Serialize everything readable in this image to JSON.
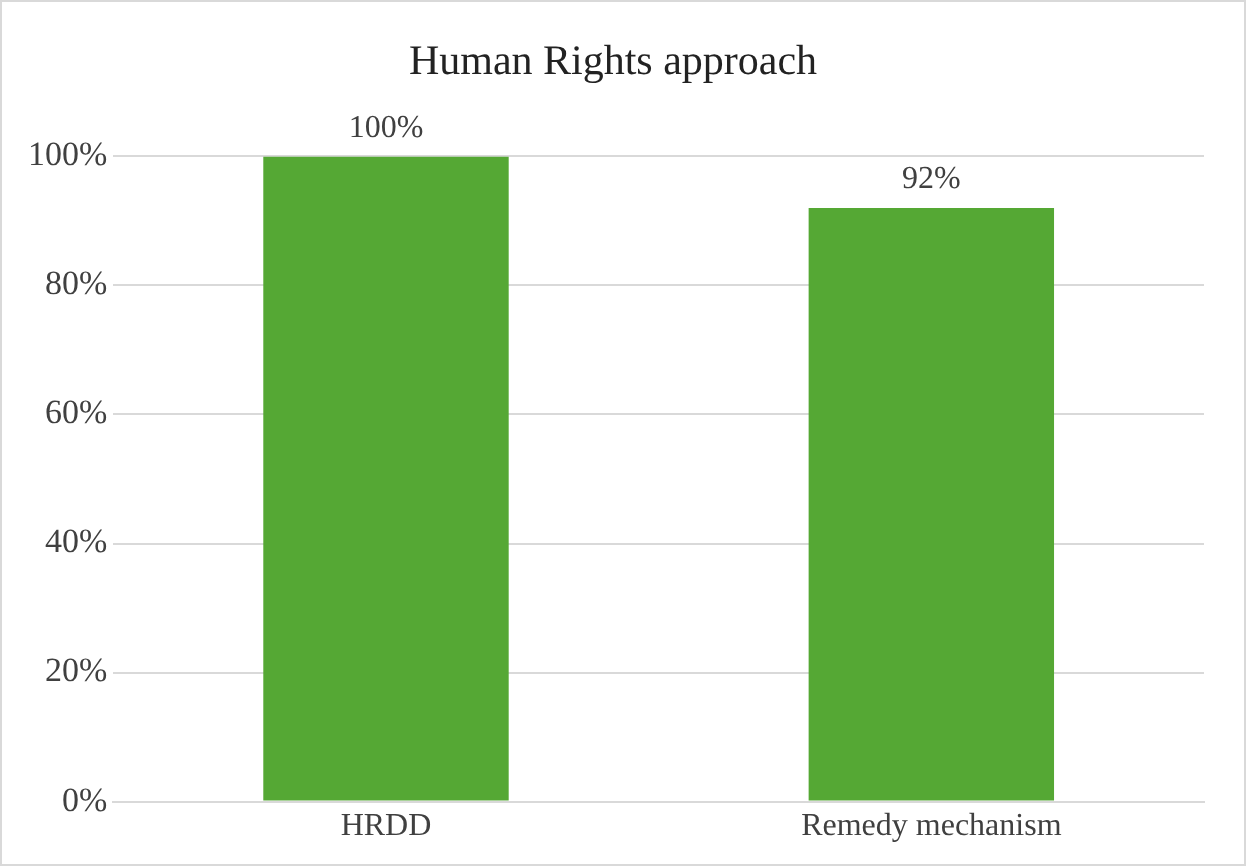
{
  "chart_data": {
    "type": "bar",
    "title": "Human Rights approach",
    "categories": [
      "HRDD",
      "Remedy mechanism"
    ],
    "values": [
      100,
      92
    ],
    "value_labels": [
      "100%",
      "92%"
    ],
    "color": "#55a834",
    "ylim": [
      0,
      100
    ],
    "yticks": [
      {
        "value": 0,
        "label": "0%"
      },
      {
        "value": 20,
        "label": "20%"
      },
      {
        "value": 40,
        "label": "40%"
      },
      {
        "value": 60,
        "label": "60%"
      },
      {
        "value": 80,
        "label": "80%"
      },
      {
        "value": 100,
        "label": "100%"
      }
    ],
    "grid": "y",
    "legend": false
  }
}
